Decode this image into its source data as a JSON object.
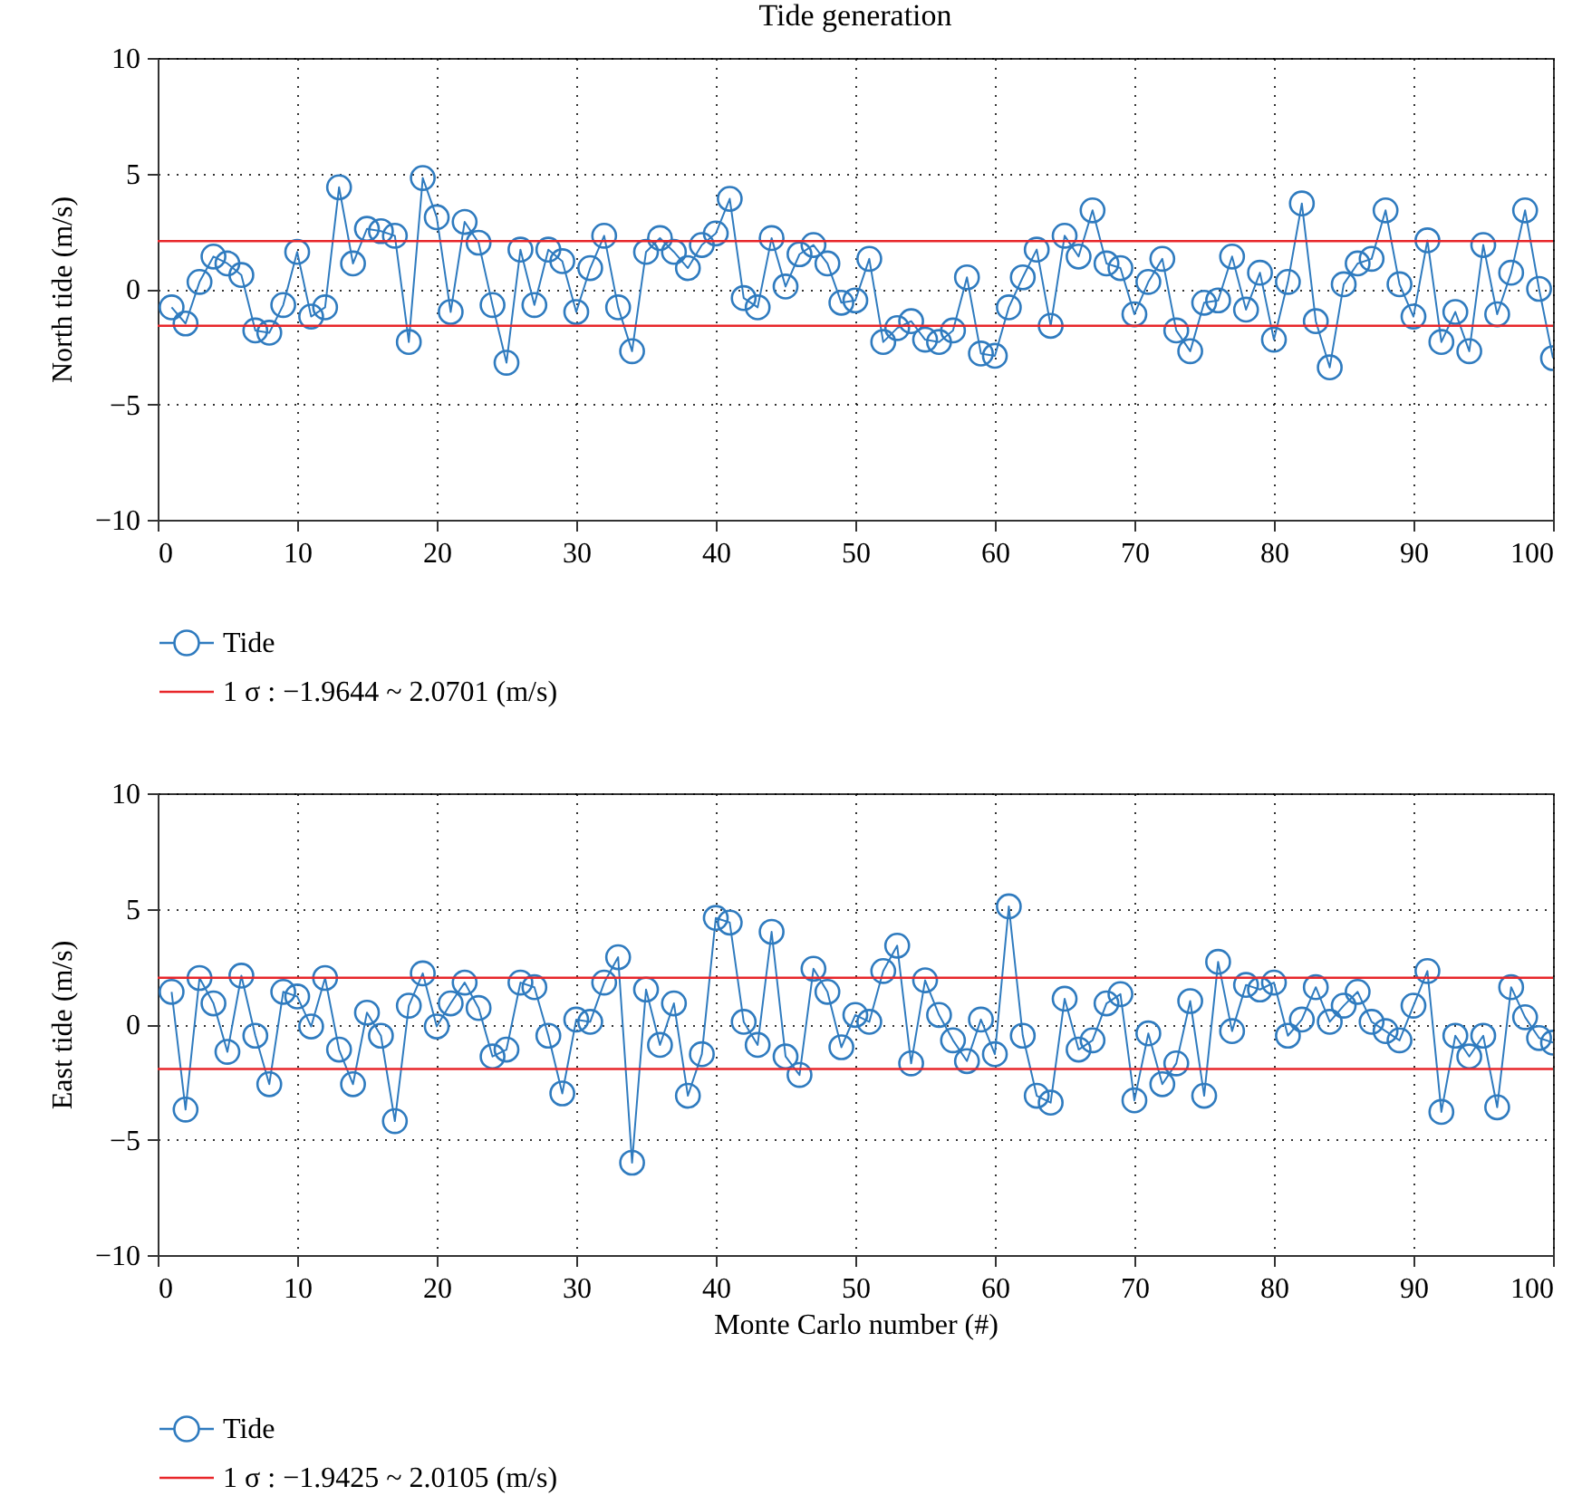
{
  "chart_data": [
    {
      "type": "line",
      "title": "Tide generation",
      "ylabel": "North tide (m/s)",
      "xlim": [
        0,
        100
      ],
      "xticks": [
        0,
        10,
        20,
        30,
        40,
        50,
        60,
        70,
        80,
        90,
        100
      ],
      "ylim": [
        -10,
        10
      ],
      "yticks": [
        -10,
        -5,
        0,
        5,
        10
      ],
      "grid": true,
      "marker": "circle",
      "legend": "bottom left",
      "x": [
        1,
        2,
        3,
        4,
        5,
        6,
        7,
        8,
        9,
        10,
        11,
        12,
        13,
        14,
        15,
        16,
        17,
        18,
        19,
        20,
        21,
        22,
        23,
        24,
        25,
        26,
        27,
        28,
        29,
        30,
        31,
        32,
        33,
        34,
        35,
        36,
        37,
        38,
        39,
        40,
        41,
        42,
        43,
        44,
        45,
        46,
        47,
        48,
        49,
        50,
        51,
        52,
        53,
        54,
        55,
        56,
        57,
        58,
        59,
        60,
        61,
        62,
        63,
        64,
        65,
        66,
        67,
        68,
        69,
        70,
        71,
        72,
        73,
        74,
        75,
        76,
        77,
        78,
        79,
        80,
        81,
        82,
        83,
        84,
        85,
        86,
        87,
        88,
        89,
        90,
        91,
        92,
        93,
        94,
        95,
        96,
        97,
        98,
        99,
        100
      ],
      "series": [
        {
          "name": "Tide",
          "color": "#2f7bbf",
          "values": [
            -0.8,
            -1.5,
            0.3,
            1.4,
            1.1,
            0.6,
            -1.8,
            -1.9,
            -0.7,
            1.6,
            -1.2,
            -0.8,
            4.4,
            1.1,
            2.6,
            2.5,
            2.3,
            -2.3,
            4.8,
            3.1,
            -1.0,
            2.9,
            2.0,
            -0.7,
            -3.2,
            1.7,
            -0.7,
            1.7,
            1.2,
            -1.0,
            0.9,
            2.3,
            -0.8,
            -2.7,
            1.6,
            2.2,
            1.6,
            0.9,
            1.9,
            2.4,
            3.9,
            -0.4,
            -0.8,
            2.2,
            0.1,
            1.5,
            1.9,
            1.1,
            -0.6,
            -0.5,
            1.3,
            -2.3,
            -1.7,
            -1.4,
            -2.2,
            -2.3,
            -1.8,
            0.5,
            -2.8,
            -2.9,
            -0.8,
            0.5,
            1.7,
            -1.6,
            2.3,
            1.4,
            3.4,
            1.1,
            0.9,
            -1.1,
            0.3,
            1.3,
            -1.8,
            -2.7,
            -0.6,
            -0.5,
            1.4,
            -0.9,
            0.7,
            -2.2,
            0.3,
            3.7,
            -1.4,
            -3.4,
            0.2,
            1.1,
            1.3,
            3.4,
            0.2,
            -1.2,
            2.1,
            -2.3,
            -1.0,
            -2.7,
            1.9,
            -1.1,
            0.7,
            3.4,
            0.0,
            -3.0
          ]
        }
      ],
      "ref_lines": [
        {
          "axis": "y",
          "value": 2.0701,
          "label": "1 σ : −1.9644 ~ 2.0701 (m/s)",
          "color": "#e8262a"
        },
        {
          "axis": "y",
          "value": -1.6,
          "color": "#e8262a"
        }
      ]
    },
    {
      "type": "line",
      "xlabel": "Monte Carlo number (#)",
      "ylabel": "East tide (m/s)",
      "xlim": [
        0,
        100
      ],
      "xticks": [
        0,
        10,
        20,
        30,
        40,
        50,
        60,
        70,
        80,
        90,
        100
      ],
      "ylim": [
        -10,
        10
      ],
      "yticks": [
        -10,
        -5,
        0,
        5,
        10
      ],
      "grid": true,
      "marker": "circle",
      "legend": "bottom left",
      "x": [
        1,
        2,
        3,
        4,
        5,
        6,
        7,
        8,
        9,
        10,
        11,
        12,
        13,
        14,
        15,
        16,
        17,
        18,
        19,
        20,
        21,
        22,
        23,
        24,
        25,
        26,
        27,
        28,
        29,
        30,
        31,
        32,
        33,
        34,
        35,
        36,
        37,
        38,
        39,
        40,
        41,
        42,
        43,
        44,
        45,
        46,
        47,
        48,
        49,
        50,
        51,
        52,
        53,
        54,
        55,
        56,
        57,
        58,
        59,
        60,
        61,
        62,
        63,
        64,
        65,
        66,
        67,
        68,
        69,
        70,
        71,
        72,
        73,
        74,
        75,
        76,
        77,
        78,
        79,
        80,
        81,
        82,
        83,
        84,
        85,
        86,
        87,
        88,
        89,
        90,
        91,
        92,
        93,
        94,
        95,
        96,
        97,
        98,
        99,
        100
      ],
      "series": [
        {
          "name": "Tide",
          "color": "#2f7bbf",
          "values": [
            1.4,
            -3.7,
            2.0,
            0.9,
            -1.2,
            2.1,
            -0.5,
            -2.6,
            1.4,
            1.2,
            -0.1,
            2.0,
            -1.1,
            -2.6,
            0.5,
            -0.5,
            -4.2,
            0.8,
            2.2,
            -0.1,
            0.9,
            1.8,
            0.7,
            -1.4,
            -1.1,
            1.8,
            1.6,
            -0.5,
            -3.0,
            0.2,
            0.1,
            1.8,
            2.9,
            -6.0,
            1.5,
            -0.9,
            0.9,
            -3.1,
            -1.3,
            4.6,
            4.4,
            0.1,
            -0.9,
            4.0,
            -1.4,
            -2.2,
            2.4,
            1.4,
            -1.0,
            0.4,
            0.1,
            2.3,
            3.4,
            -1.7,
            1.9,
            0.4,
            -0.7,
            -1.6,
            0.2,
            -1.3,
            5.1,
            -0.5,
            -3.1,
            -3.4,
            1.1,
            -1.1,
            -0.7,
            0.9,
            1.3,
            -3.3,
            -0.4,
            -2.6,
            -1.7,
            1.0,
            -3.1,
            2.7,
            -0.3,
            1.7,
            1.5,
            1.8,
            -0.5,
            0.2,
            1.6,
            0.1,
            0.8,
            1.4,
            0.1,
            -0.3,
            -0.7,
            0.8,
            2.3,
            -3.8,
            -0.5,
            -1.4,
            -0.5,
            -3.6,
            1.6,
            0.3,
            -0.6,
            -0.8
          ]
        }
      ],
      "ref_lines": [
        {
          "axis": "y",
          "value": 2.0105,
          "label": "1 σ : −1.9425 ~ 2.0105 (m/s)",
          "color": "#e8262a"
        },
        {
          "axis": "y",
          "value": -1.9425,
          "color": "#e8262a"
        }
      ]
    }
  ]
}
